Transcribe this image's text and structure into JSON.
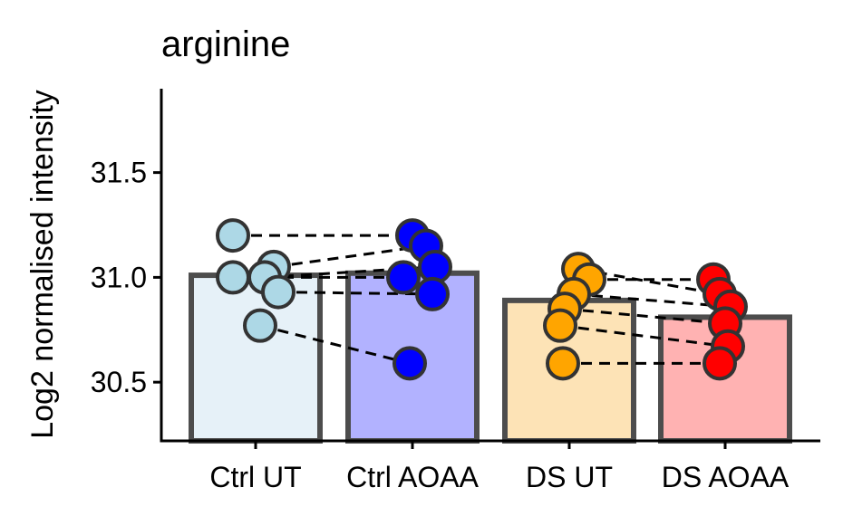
{
  "chart_data": {
    "type": "bar",
    "title": "arginine",
    "xlabel": "",
    "ylabel": "Log2 normalised intensity",
    "ylim": [
      30.22,
      31.9
    ],
    "yticks": [
      30.5,
      31.0,
      31.5
    ],
    "ytick_labels": [
      "30.5",
      "31.0",
      "31.5"
    ],
    "grid": false,
    "legend": "none",
    "categories": [
      "Ctrl UT",
      "Ctrl AOAA",
      "DS UT",
      "DS AOAA"
    ],
    "values": [
      31.01,
      31.02,
      30.89,
      30.81
    ],
    "bar_fill": [
      "#e6f1f8",
      "#b2b2ff",
      "#fde3b6",
      "#ffb2b2"
    ],
    "point_fill": [
      "#add8e6",
      "#0000ff",
      "#ffa500",
      "#ff0000"
    ],
    "bar_outline": "#4d4d4d",
    "points": [
      [
        31.2,
        31.05,
        31.0,
        31.0,
        30.93,
        30.77
      ],
      [
        31.2,
        31.15,
        31.05,
        31.0,
        30.92,
        30.59
      ],
      [
        31.04,
        30.99,
        30.92,
        30.85,
        30.77,
        30.59
      ],
      [
        30.99,
        30.92,
        30.86,
        30.78,
        30.67,
        30.59
      ]
    ],
    "pairs": [
      {
        "from": 0,
        "to": 1,
        "links": [
          [
            31.2,
            31.2
          ],
          [
            31.05,
            31.15
          ],
          [
            31.0,
            31.05
          ],
          [
            31.0,
            31.0
          ],
          [
            30.93,
            30.92
          ],
          [
            30.77,
            30.59
          ]
        ]
      },
      {
        "from": 2,
        "to": 3,
        "links": [
          [
            31.04,
            30.92
          ],
          [
            30.99,
            30.99
          ],
          [
            30.92,
            30.86
          ],
          [
            30.85,
            30.78
          ],
          [
            30.77,
            30.67
          ],
          [
            30.59,
            30.59
          ]
        ]
      }
    ]
  }
}
